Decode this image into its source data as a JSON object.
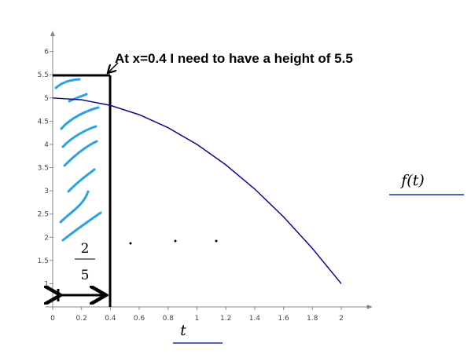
{
  "chart_data": {
    "type": "line",
    "xlabel": "t",
    "ylabel": "f(t)",
    "annotation": "At x=0.4 I need to have a height of 5.5",
    "fraction": {
      "numerator": 2,
      "denominator": 5
    },
    "x": [
      0,
      0.2,
      0.4,
      0.6,
      0.8,
      1,
      1.2,
      1.4,
      1.6,
      1.8,
      2
    ],
    "series": [
      {
        "color": "#0b0b8c",
        "values": [
          5,
          4.96,
          4.84,
          4.64,
          4.36,
          4,
          3.56,
          3.04,
          2.44,
          1.76,
          1
        ]
      }
    ],
    "xlim": [
      -0.05,
      2.2
    ],
    "ylim": [
      0.5,
      6.4
    ],
    "xticks": [
      0,
      0.2,
      0.4,
      0.6,
      0.8,
      1,
      1.2,
      1.4,
      1.6,
      1.8,
      2
    ],
    "yticks": [
      1,
      1.5,
      2,
      2.5,
      3,
      3.5,
      4,
      4.5,
      5,
      5.5,
      6
    ]
  }
}
